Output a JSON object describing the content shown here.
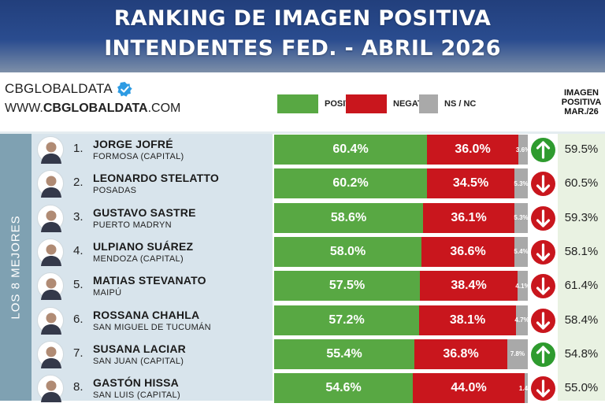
{
  "header": {
    "line1": "RANKING DE IMAGEN POSITIVA",
    "line2": "INTENDENTES FED. - ABRIL 2026"
  },
  "brand": {
    "name": "CBGLOBALDATA",
    "web_prefix": "WWW.",
    "web_bold": "CBGLOBALDATA",
    "web_suffix": ".COM"
  },
  "legend": {
    "positive": "POSITIVA",
    "negative": "NEGATIVA",
    "nsnc": "NS / NC"
  },
  "prev_header": [
    "IMAGEN",
    "POSITIVA",
    "MAR./26"
  ],
  "side_label": "LOS 8 MEJORES",
  "colors": {
    "positive": "#58a843",
    "negative": "#c9161d",
    "nsnc": "#a9a9a9",
    "arrow_up": "#2e9b2e",
    "arrow_down": "#c9161d"
  },
  "chart_data": {
    "type": "bar",
    "orientation": "horizontal-stacked",
    "title": "RANKING DE IMAGEN POSITIVA INTENDENTES FED. - ABRIL 2026",
    "categories": [
      "JORGE JOFRÉ",
      "LEONARDO STELATTO",
      "GUSTAVO SASTRE",
      "ULPIANO SUÁREZ",
      "MATIAS STEVANATO",
      "ROSSANA CHAHLA",
      "SUSANA LACIAR",
      "GASTÓN HISSA"
    ],
    "series": [
      {
        "name": "POSITIVA",
        "values": [
          60.4,
          60.2,
          58.6,
          58.0,
          57.5,
          57.2,
          55.4,
          54.6
        ]
      },
      {
        "name": "NEGATIVA",
        "values": [
          36.0,
          34.5,
          36.1,
          36.6,
          38.4,
          38.1,
          36.8,
          44.0
        ]
      },
      {
        "name": "NS / NC",
        "values": [
          3.6,
          5.3,
          5.3,
          5.4,
          4.1,
          4.7,
          7.8,
          1.4
        ]
      }
    ],
    "legend": "top",
    "xlim": [
      0,
      100
    ]
  },
  "rows": [
    {
      "rank": "1.",
      "name": "JORGE JOFRÉ",
      "city": "FORMOSA (CAPITAL)",
      "pos": 60.4,
      "neg": 36.0,
      "ns": 3.6,
      "pos_label": "60.4%",
      "neg_label": "36.0%",
      "ns_label": "3.6%",
      "trend": "up",
      "prev": "59.5%"
    },
    {
      "rank": "2.",
      "name": "LEONARDO STELATTO",
      "city": "POSADAS",
      "pos": 60.2,
      "neg": 34.5,
      "ns": 5.3,
      "pos_label": "60.2%",
      "neg_label": "34.5%",
      "ns_label": "5.3%",
      "trend": "down",
      "prev": "60.5%"
    },
    {
      "rank": "3.",
      "name": "GUSTAVO SASTRE",
      "city": "PUERTO MADRYN",
      "pos": 58.6,
      "neg": 36.1,
      "ns": 5.3,
      "pos_label": "58.6%",
      "neg_label": "36.1%",
      "ns_label": "5.3%",
      "trend": "down",
      "prev": "59.3%"
    },
    {
      "rank": "4.",
      "name": "ULPIANO SUÁREZ",
      "city": "MENDOZA (CAPITAL)",
      "pos": 58.0,
      "neg": 36.6,
      "ns": 5.4,
      "pos_label": "58.0%",
      "neg_label": "36.6%",
      "ns_label": "5.4%",
      "trend": "down",
      "prev": "58.1%"
    },
    {
      "rank": "5.",
      "name": "MATIAS STEVANATO",
      "city": "MAIPÚ",
      "pos": 57.5,
      "neg": 38.4,
      "ns": 4.1,
      "pos_label": "57.5%",
      "neg_label": "38.4%",
      "ns_label": "4.1%",
      "trend": "down",
      "prev": "61.4%"
    },
    {
      "rank": "6.",
      "name": "ROSSANA CHAHLA",
      "city": "SAN MIGUEL DE TUCUMÁN",
      "pos": 57.2,
      "neg": 38.1,
      "ns": 4.7,
      "pos_label": "57.2%",
      "neg_label": "38.1%",
      "ns_label": "4.7%",
      "trend": "down",
      "prev": "58.4%"
    },
    {
      "rank": "7.",
      "name": "SUSANA LACIAR",
      "city": "SAN JUAN (CAPITAL)",
      "pos": 55.4,
      "neg": 36.8,
      "ns": 7.8,
      "pos_label": "55.4%",
      "neg_label": "36.8%",
      "ns_label": "7.8%",
      "trend": "up",
      "prev": "54.8%"
    },
    {
      "rank": "8.",
      "name": "GASTÓN HISSA",
      "city": "SAN LUIS (CAPITAL)",
      "pos": 54.6,
      "neg": 44.0,
      "ns": 1.4,
      "pos_label": "54.6%",
      "neg_label": "44.0%",
      "ns_label": "1.4%",
      "trend": "down",
      "prev": "55.0%"
    }
  ]
}
